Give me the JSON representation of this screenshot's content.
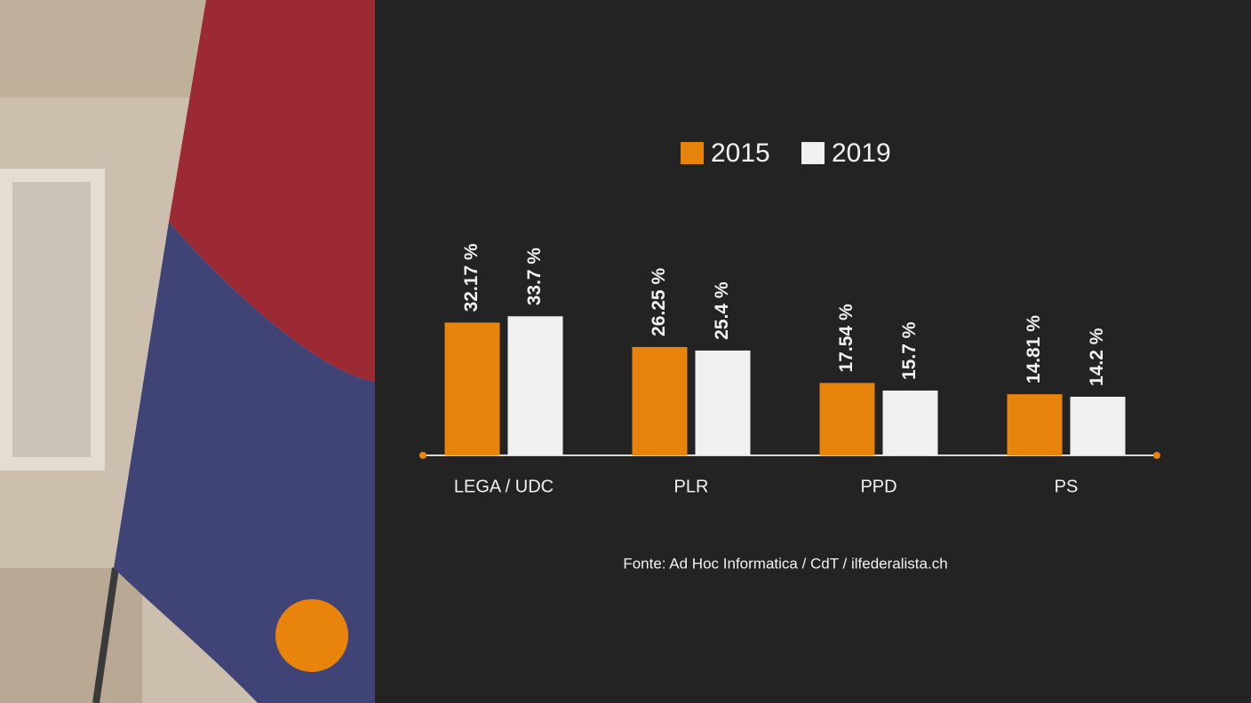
{
  "chart_data": {
    "type": "bar",
    "categories": [
      "LEGA / UDC",
      "PLR",
      "PPD",
      "PS"
    ],
    "series": [
      {
        "name": "2015",
        "color": "#e8830c",
        "values": [
          32.17,
          26.25,
          17.54,
          14.81
        ],
        "value_labels": [
          "32.17 %",
          "26.25 %",
          "17.54 %",
          "14.81 %"
        ]
      },
      {
        "name": "2019",
        "color": "#f0f0f0",
        "values": [
          33.7,
          25.4,
          15.7,
          14.2
        ],
        "value_labels": [
          "33.7 %",
          "25.4 %",
          "15.7 %",
          "14.2 %"
        ]
      }
    ],
    "source": "Fonte: Ad Hoc Informatica / CdT / ilfederalista.ch"
  }
}
